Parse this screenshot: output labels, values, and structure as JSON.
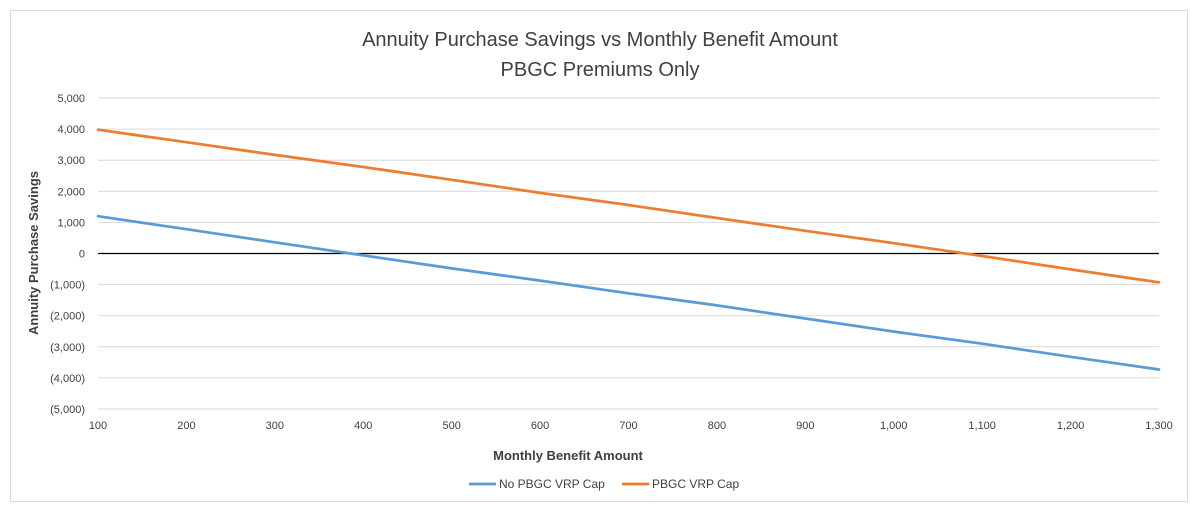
{
  "chart_data": {
    "type": "line",
    "title": "Annuity Purchase Savings vs Monthly Benefit Amount",
    "subtitle": "PBGC Premiums Only",
    "xlabel": "Monthly Benefit Amount",
    "ylabel": "Annuity Purchase Savings",
    "xlim": [
      100,
      1300
    ],
    "ylim": [
      -5000,
      5000
    ],
    "x_ticks": [
      100,
      200,
      300,
      400,
      500,
      600,
      700,
      800,
      900,
      1000,
      1100,
      1200,
      1300
    ],
    "x_tick_labels": [
      "100",
      "200",
      "300",
      "400",
      "500",
      "600",
      "700",
      "800",
      "900",
      "1,000",
      "1,100",
      "1,200",
      "1,300"
    ],
    "y_ticks": [
      5000,
      4000,
      3000,
      2000,
      1000,
      0,
      -1000,
      -2000,
      -3000,
      -4000,
      -5000
    ],
    "y_tick_labels": [
      "5,000",
      "4,000",
      "3,000",
      "2,000",
      "1,000",
      "0",
      "(1,000)",
      "(2,000)",
      "(3,000)",
      "(4,000)",
      "(5,000)"
    ],
    "grid": true,
    "legend_position": "bottom",
    "x": [
      100,
      200,
      300,
      400,
      500,
      600,
      700,
      800,
      900,
      1000,
      1100,
      1200,
      1300
    ],
    "series": [
      {
        "name": "No PBGC VRP Cap",
        "color": "#5B9BD5",
        "values": [
          1200,
          780,
          360,
          -60,
          -480,
          -870,
          -1280,
          -1670,
          -2090,
          -2510,
          -2900,
          -3320,
          -3730
        ]
      },
      {
        "name": "PBGC VRP Cap",
        "color": "#ED7D31",
        "values": [
          3980,
          3580,
          3170,
          2780,
          2370,
          1950,
          1560,
          1140,
          730,
          330,
          -80,
          -510,
          -930
        ]
      }
    ]
  }
}
